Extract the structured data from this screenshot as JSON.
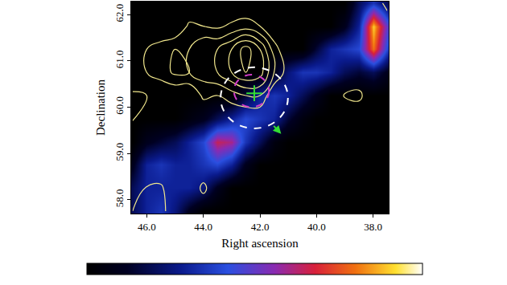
{
  "chart_data": {
    "type": "heatmap",
    "x_label": "Right ascension",
    "y_label": "Declination",
    "xlim": [
      46.55,
      37.45
    ],
    "ylim": [
      57.7,
      62.28
    ],
    "xticks": [
      {
        "value": 46,
        "label": "46.0"
      },
      {
        "value": 44,
        "label": "44.0"
      },
      {
        "value": 42,
        "label": "42.0"
      },
      {
        "value": 40,
        "label": "40.0"
      },
      {
        "value": 38,
        "label": "38.0"
      }
    ],
    "yticks": [
      {
        "value": 58,
        "label": "58.0"
      },
      {
        "value": 59,
        "label": "59.0"
      },
      {
        "value": 60,
        "label": "60.0"
      },
      {
        "value": 61,
        "label": "61.0"
      },
      {
        "value": 62,
        "label": "62.0"
      }
    ],
    "x": [
      37.5,
      38.0,
      38.5,
      39.0,
      39.5,
      40.0,
      40.5,
      41.0,
      41.5,
      42.0,
      42.5,
      43.0,
      43.5,
      44.0,
      44.5,
      45.0,
      45.5,
      46.0,
      46.5
    ],
    "y": [
      57.75,
      58.25,
      58.75,
      59.25,
      59.75,
      60.25,
      60.75,
      61.25,
      61.75,
      62.25
    ],
    "cells": [
      [
        0,
        0,
        0,
        0,
        0,
        0,
        0,
        0,
        0,
        0,
        0,
        0,
        0,
        0,
        0.1,
        0.25,
        0.35,
        0.3,
        0.2
      ],
      [
        0,
        0,
        0,
        0,
        0,
        0,
        0,
        0,
        0,
        0,
        0,
        0,
        0.1,
        0.25,
        0.3,
        0.3,
        0.3,
        0.3,
        0.2
      ],
      [
        0,
        0,
        0,
        0,
        0,
        0,
        0,
        0,
        0,
        0,
        0.1,
        0.3,
        0.4,
        0.35,
        0.3,
        0.3,
        0.35,
        0.3,
        0.1
      ],
      [
        0,
        0,
        0,
        0,
        0,
        0,
        0,
        0,
        0.05,
        0.2,
        0.35,
        0.6,
        0.65,
        0.4,
        0.3,
        0.2,
        0.15,
        0.1,
        0
      ],
      [
        0,
        0,
        0,
        0,
        0,
        0,
        0.05,
        0.15,
        0.3,
        0.35,
        0.4,
        0.3,
        0.2,
        0.1,
        0.05,
        0,
        0,
        0,
        0
      ],
      [
        0,
        0,
        0,
        0,
        0,
        0.1,
        0.2,
        0.3,
        0.35,
        0.3,
        0.15,
        0,
        0,
        0,
        0,
        0,
        0,
        0,
        0
      ],
      [
        0.1,
        0.2,
        0.15,
        0.2,
        0.3,
        0.35,
        0.35,
        0.25,
        0.1,
        0,
        0,
        0,
        0,
        0,
        0,
        0,
        0,
        0,
        0
      ],
      [
        0.4,
        0.8,
        0.4,
        0.35,
        0.3,
        0.15,
        0,
        0,
        0,
        0,
        0,
        0,
        0,
        0,
        0,
        0,
        0,
        0,
        0
      ],
      [
        0.5,
        0.9,
        0.3,
        0.1,
        0,
        0,
        0,
        0,
        0,
        0,
        0,
        0,
        0,
        0,
        0,
        0,
        0,
        0,
        0
      ],
      [
        0.2,
        0.35,
        0.2,
        0,
        0,
        0,
        0,
        0,
        0,
        0,
        0,
        0,
        0,
        0,
        0,
        0,
        0,
        0,
        0
      ]
    ],
    "color_range": [
      0,
      1
    ],
    "contours": {
      "color": "#f0e68c",
      "levels": {
        "start": 1,
        "end": 5,
        "size": 1
      },
      "cells": [
        [
          0,
          0,
          0,
          0,
          0,
          0,
          0,
          0,
          0,
          0,
          0,
          0,
          0,
          0,
          0,
          0,
          1.5,
          1.5,
          1
        ],
        [
          0,
          0,
          0,
          0,
          0,
          0,
          0,
          0,
          0,
          0,
          0,
          0,
          0,
          1.3,
          0,
          0,
          1.2,
          1.1,
          0
        ],
        [
          0,
          0,
          0,
          0,
          0,
          0,
          0,
          0,
          0,
          0,
          0,
          0,
          0,
          0,
          0,
          0,
          0,
          0,
          0
        ],
        [
          0,
          0,
          0,
          0,
          0,
          0,
          0,
          0,
          0,
          0,
          0,
          0,
          0,
          0,
          0,
          0,
          0,
          0,
          0
        ],
        [
          0,
          0,
          0,
          0,
          0,
          0,
          0,
          0,
          0,
          0,
          0,
          0,
          0,
          0,
          0,
          0,
          0,
          0,
          1.1
        ],
        [
          0,
          0,
          1.3,
          1.1,
          0,
          0,
          0,
          0,
          0,
          2,
          2,
          1.5,
          1,
          1.2,
          0,
          0,
          0,
          1,
          1.2
        ],
        [
          0,
          0,
          0,
          0,
          0,
          0,
          0,
          0.5,
          2,
          4.5,
          5,
          4,
          3,
          2.5,
          2,
          2.2,
          1.5,
          1,
          0
        ],
        [
          0,
          0,
          0,
          0,
          0,
          0,
          0,
          0,
          1.5,
          4,
          5.5,
          4,
          3,
          3,
          2,
          2,
          1.5,
          1,
          0
        ],
        [
          0,
          0,
          0,
          0,
          0,
          0,
          0,
          0,
          0,
          1,
          1.5,
          1.2,
          0.8,
          1,
          1.2,
          0,
          0,
          0,
          0
        ],
        [
          1.5,
          0,
          0,
          0,
          0,
          0,
          0,
          0,
          0,
          0,
          0,
          0,
          0,
          0,
          0,
          0,
          0,
          0,
          0
        ]
      ]
    },
    "regions": [
      {
        "center": [
          42.2,
          60.2
        ],
        "radius": [
          1.19,
          0.66
        ],
        "color": "#ffffff",
        "line_style": "dash"
      },
      {
        "center": [
          42.3,
          60.35
        ],
        "radius": [
          0.62,
          0.35
        ],
        "color": "#d23cc8",
        "line_style": "dash"
      }
    ],
    "source": {
      "position": [
        42.2,
        60.3
      ],
      "color": "#33dd33",
      "marker": "cross"
    },
    "arrow": {
      "from": [
        41.55,
        59.62
      ],
      "to": [
        41.25,
        59.42
      ],
      "color": "#33dd33"
    }
  }
}
